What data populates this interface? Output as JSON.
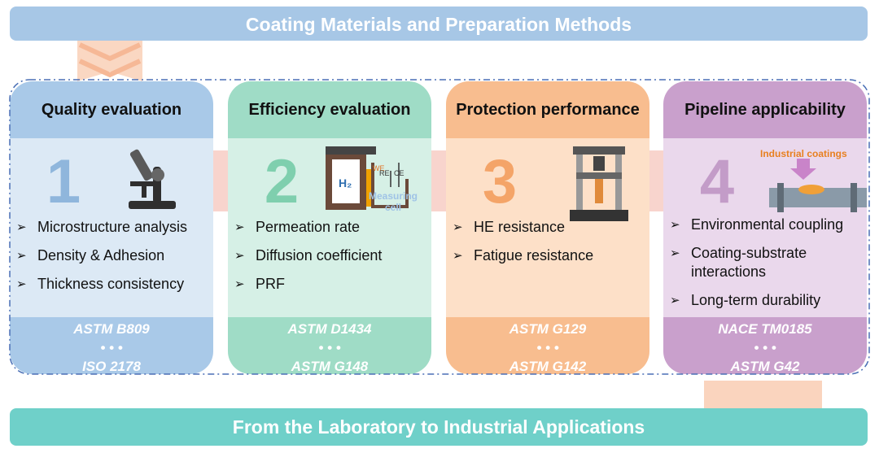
{
  "header": {
    "title": "Coating Materials and Preparation Methods"
  },
  "footer": {
    "title": "From the Laboratory to Industrial Applications"
  },
  "cards": [
    {
      "title": "Quality evaluation",
      "number": "1",
      "items": [
        "Microstructure analysis",
        "Density & Adhesion",
        "Thickness consistency"
      ],
      "standards": [
        "ASTM B809",
        "• • •",
        "ISO 2178"
      ]
    },
    {
      "title": "Efficiency evaluation",
      "number": "2",
      "items": [
        "Permeation rate",
        "Diffusion coefficient",
        "PRF"
      ],
      "standards": [
        "ASTM D1434",
        "• • •",
        "ASTM G148"
      ],
      "illustration": {
        "gas": "H₂",
        "electrodes": [
          "WE",
          "RE",
          "CE"
        ],
        "label": "Measuring cell"
      }
    },
    {
      "title": "Protection performance",
      "number": "3",
      "items": [
        "HE resistance",
        "Fatigue resistance"
      ],
      "standards": [
        "ASTM G129",
        "• • •",
        "ASTM G142"
      ]
    },
    {
      "title": "Pipeline applicability",
      "number": "4",
      "items": [
        "Environmental coupling",
        "Coating-substrate interactions",
        "Long-term durability"
      ],
      "standards": [
        "NACE TM0185",
        "• • •",
        "ASTM G42"
      ],
      "illustration": {
        "label": "Industrial coatings"
      }
    }
  ]
}
